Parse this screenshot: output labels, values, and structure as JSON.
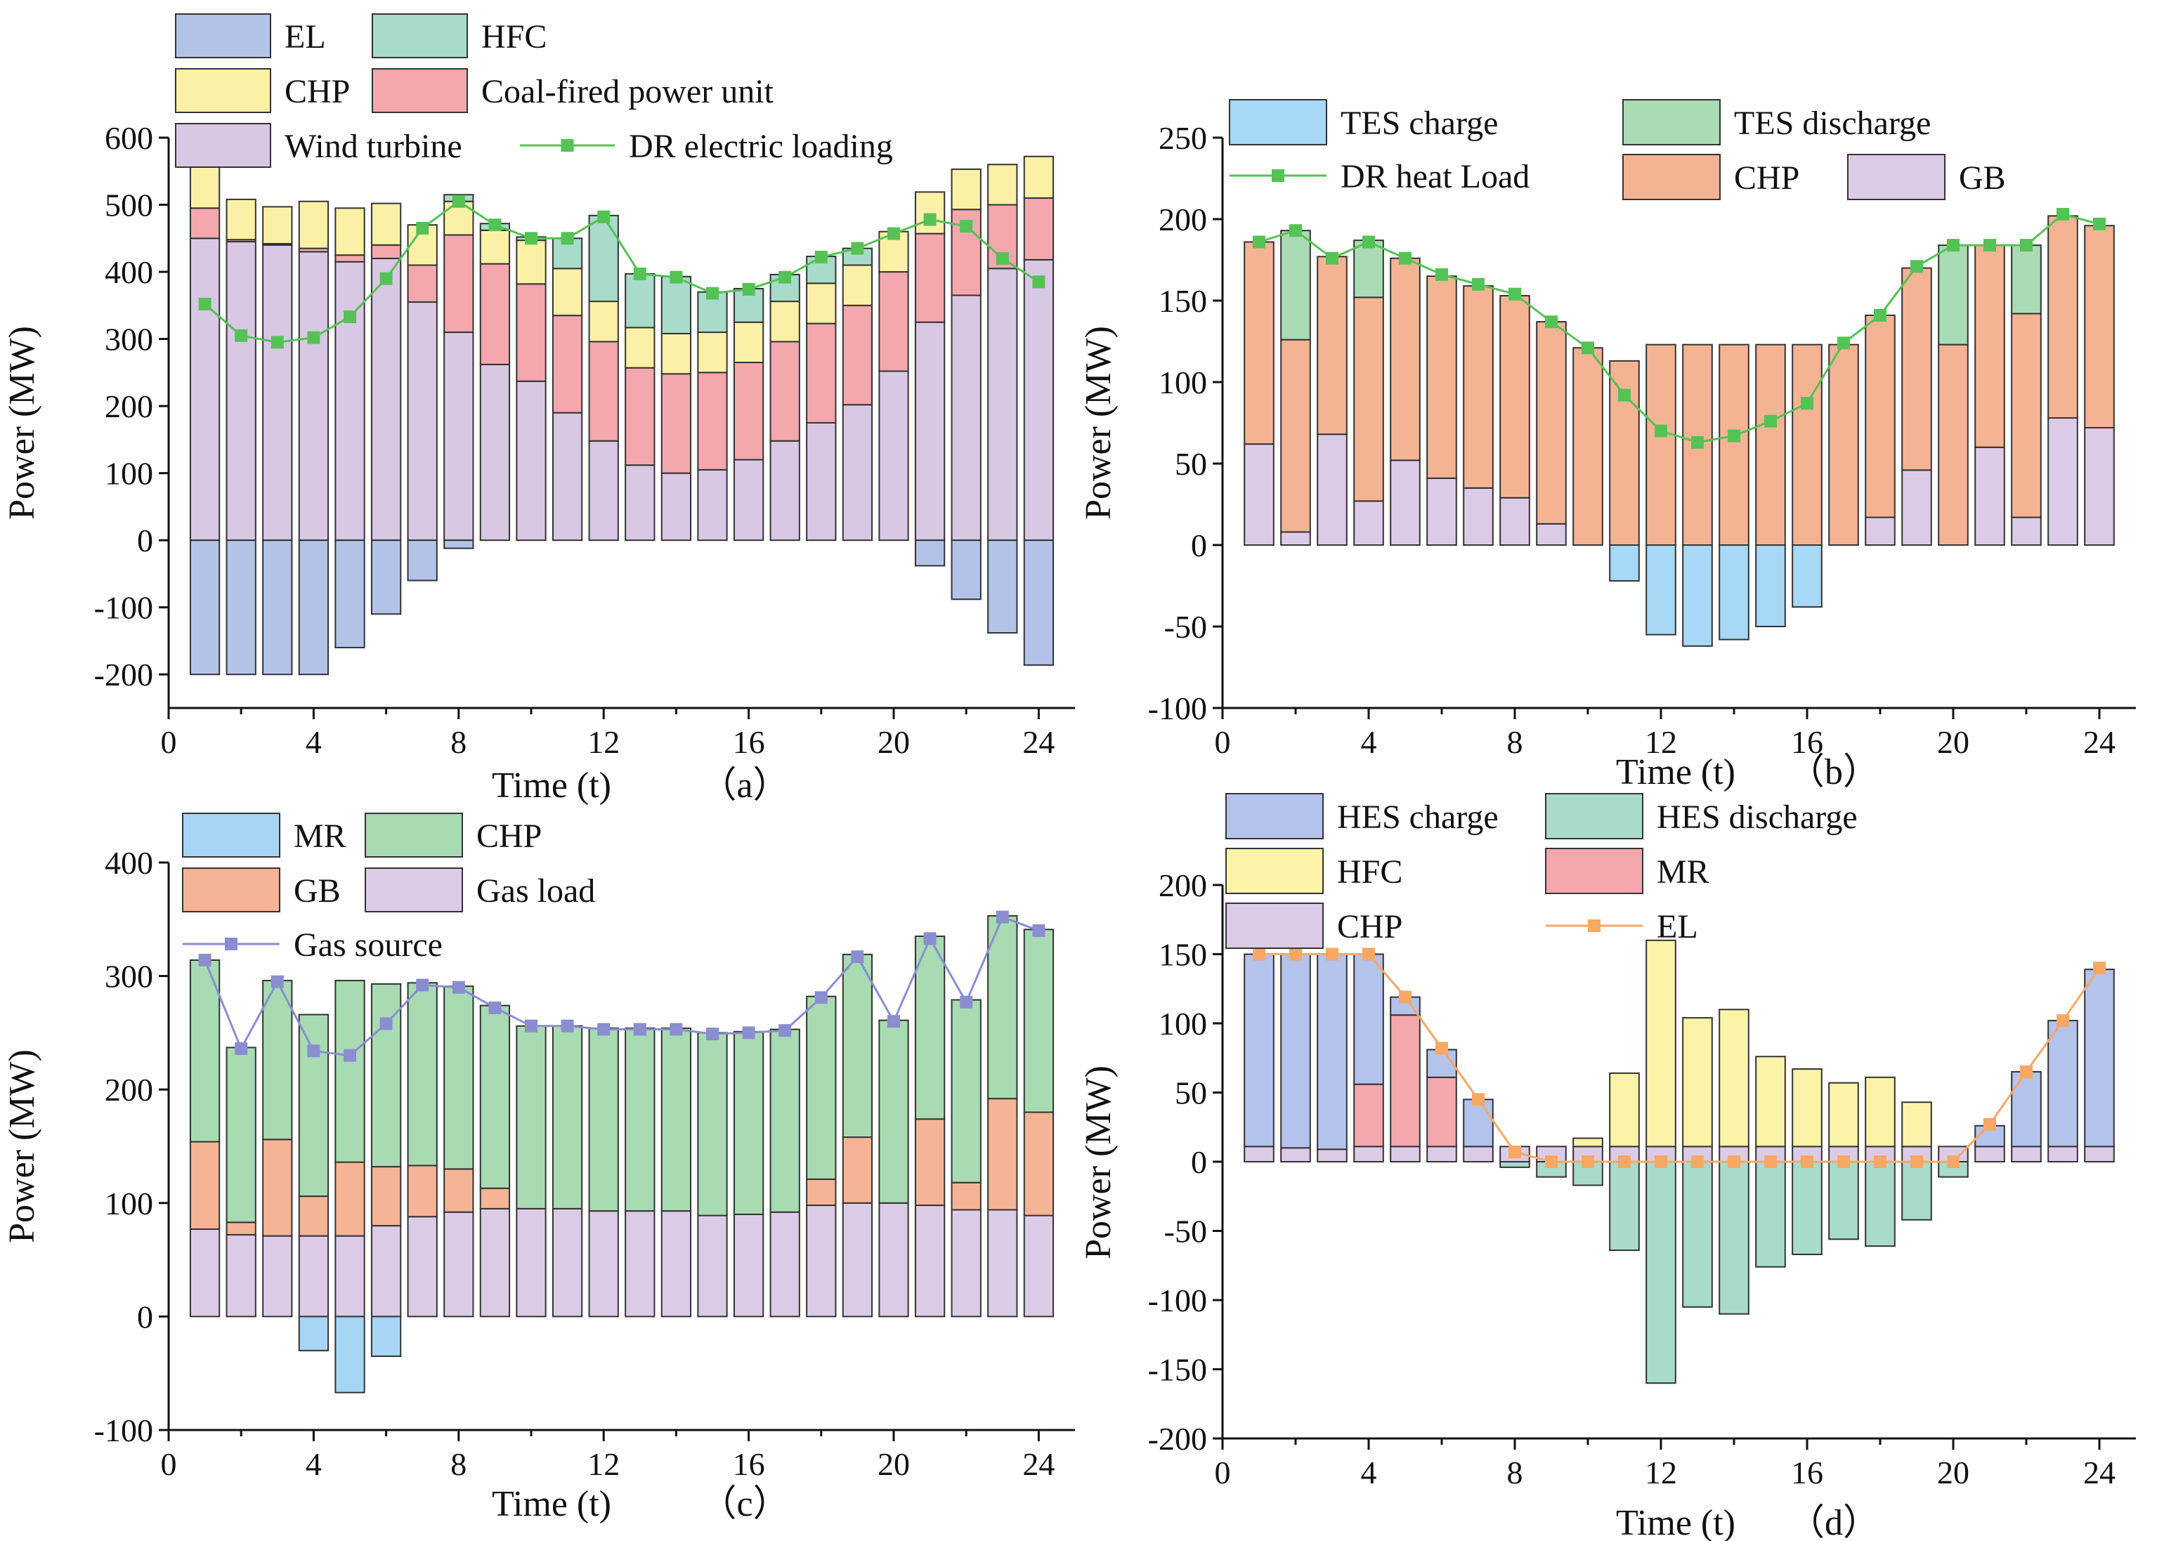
{
  "colors": {
    "EL": "#b3c3e8",
    "HFC": "#a8dbc9",
    "CHP_elec": "#fbf1a6",
    "Coal": "#f4a7ad",
    "Wind": "#d8c8e4",
    "DR_elec_line": "#55c255",
    "TES_charge": "#a7d8f5",
    "TES_discharge": "#a9dbb5",
    "CHP_heat": "#f4b493",
    "GB_heat": "#dccbe6",
    "DR_heat_line": "#55c255",
    "MR_gas": "#a7d6f5",
    "CHP_gas": "#a8dbb2",
    "GB_gas": "#f4b495",
    "Gas_load": "#dccbe6",
    "Gas_source_line": "#8a8ed0",
    "HES_charge": "#b3c3ec",
    "HES_discharge": "#a9dbcb",
    "HFC_h2": "#fbf3a8",
    "MR_h2": "#f4a7ad",
    "CHP_h2": "#dccbe6",
    "EL_h2_line": "#f7a865"
  },
  "chart_data": [
    {
      "panel": "a",
      "type": "bar",
      "stacked": true,
      "xlabel": "Time (t)",
      "panel_tag": "（a）",
      "ylabel": "Power (MW)",
      "xlim": [
        0,
        25
      ],
      "ylim": [
        -250,
        600
      ],
      "xticks": [
        0,
        4,
        8,
        12,
        16,
        20,
        24
      ],
      "yticks": [
        -200,
        -100,
        0,
        100,
        200,
        300,
        400,
        500,
        600
      ],
      "x": [
        1,
        2,
        3,
        4,
        5,
        6,
        7,
        8,
        9,
        10,
        11,
        12,
        13,
        14,
        15,
        16,
        17,
        18,
        19,
        20,
        21,
        22,
        23,
        24
      ],
      "series": [
        {
          "name": "Wind turbine",
          "color_key": "Wind",
          "values": [
            450,
            445,
            440,
            430,
            415,
            420,
            355,
            310,
            262,
            237,
            190,
            148,
            112,
            100,
            105,
            120,
            148,
            175,
            202,
            252,
            325,
            365,
            405,
            418
          ]
        },
        {
          "name": "Coal-fired power unit",
          "color_key": "Coal",
          "values": [
            45,
            3,
            2,
            5,
            10,
            20,
            55,
            145,
            150,
            145,
            145,
            148,
            145,
            148,
            145,
            145,
            148,
            148,
            148,
            148,
            132,
            128,
            95,
            92
          ]
        },
        {
          "name": "CHP",
          "color_key": "CHP_elec",
          "values": [
            105,
            60,
            55,
            70,
            70,
            62,
            60,
            50,
            50,
            65,
            70,
            60,
            60,
            60,
            60,
            60,
            60,
            60,
            60,
            60,
            62,
            60,
            60,
            62
          ]
        },
        {
          "name": "HFC",
          "color_key": "HFC",
          "values": [
            0,
            0,
            0,
            0,
            0,
            0,
            0,
            10,
            10,
            5,
            45,
            128,
            80,
            85,
            60,
            50,
            40,
            40,
            25,
            0,
            0,
            0,
            0,
            0
          ]
        },
        {
          "name": "EL",
          "color_key": "EL",
          "values": [
            -200,
            -200,
            -200,
            -200,
            -160,
            -110,
            -60,
            -12,
            0,
            0,
            0,
            0,
            0,
            0,
            0,
            0,
            0,
            0,
            0,
            0,
            -38,
            -88,
            -138,
            -186
          ]
        }
      ],
      "lines": [
        {
          "name": "DR electric loading",
          "color_key": "DR_elec_line",
          "values": [
            352,
            305,
            295,
            302,
            333,
            390,
            465,
            505,
            470,
            450,
            450,
            482,
            397,
            392,
            368,
            374,
            392,
            422,
            435,
            457,
            478,
            468,
            420,
            385
          ]
        }
      ],
      "legend": [
        {
          "name": "EL",
          "kind": "box",
          "color_key": "EL"
        },
        {
          "name": "HFC",
          "kind": "box",
          "color_key": "HFC"
        },
        {
          "name": "CHP",
          "kind": "box",
          "color_key": "CHP_elec"
        },
        {
          "name": "Coal-fired power unit",
          "kind": "box",
          "color_key": "Coal"
        },
        {
          "name": "Wind turbine",
          "kind": "box",
          "color_key": "Wind"
        },
        {
          "name": "DR electric loading",
          "kind": "line",
          "color_key": "DR_elec_line"
        }
      ]
    },
    {
      "panel": "b",
      "type": "bar",
      "stacked": true,
      "xlabel": "Time (t)",
      "panel_tag": "（b）",
      "ylabel": "Power (MW)",
      "xlim": [
        0,
        25
      ],
      "ylim": [
        -100,
        250
      ],
      "xticks": [
        0,
        4,
        8,
        12,
        16,
        20,
        24
      ],
      "yticks": [
        -100,
        -50,
        0,
        50,
        100,
        150,
        200,
        250
      ],
      "x": [
        1,
        2,
        3,
        4,
        5,
        6,
        7,
        8,
        9,
        10,
        11,
        12,
        13,
        14,
        15,
        16,
        17,
        18,
        19,
        20,
        21,
        22,
        23,
        24
      ],
      "series": [
        {
          "name": "GB",
          "color_key": "GB_heat",
          "values": [
            62,
            8,
            68,
            27,
            52,
            41,
            35,
            29,
            13,
            0,
            0,
            0,
            0,
            0,
            0,
            0,
            0,
            17,
            46,
            0,
            60,
            17,
            78,
            72
          ]
        },
        {
          "name": "CHP",
          "color_key": "CHP_heat",
          "values": [
            124,
            118,
            109,
            125,
            124,
            124,
            124,
            124,
            124,
            121,
            113,
            123,
            123,
            123,
            123,
            123,
            123,
            124,
            124,
            123,
            124,
            125,
            124,
            124
          ]
        },
        {
          "name": "TES discharge",
          "color_key": "TES_discharge",
          "values": [
            0,
            67,
            0,
            35,
            0,
            0,
            0,
            0,
            0,
            0,
            0,
            0,
            0,
            0,
            0,
            0,
            0,
            0,
            0,
            61,
            0,
            42,
            0,
            0
          ]
        },
        {
          "name": "TES charge",
          "color_key": "TES_charge",
          "values": [
            0,
            0,
            0,
            0,
            0,
            0,
            0,
            0,
            0,
            0,
            -22,
            -55,
            -62,
            -58,
            -50,
            -38,
            0,
            0,
            0,
            0,
            0,
            0,
            0,
            0
          ]
        }
      ],
      "lines": [
        {
          "name": "DR heat Load",
          "color_key": "DR_heat_line",
          "values": [
            186,
            193,
            176,
            186,
            176,
            166,
            160,
            154,
            137,
            121,
            92,
            70,
            63,
            67,
            76,
            87,
            124,
            141,
            171,
            184,
            184,
            184,
            203,
            197
          ]
        }
      ],
      "legend": [
        {
          "name": "TES charge",
          "kind": "box",
          "color_key": "TES_charge"
        },
        {
          "name": "TES discharge",
          "kind": "box",
          "color_key": "TES_discharge"
        },
        {
          "name": "DR heat Load",
          "kind": "line",
          "color_key": "DR_heat_line"
        },
        {
          "name": "CHP",
          "kind": "box",
          "color_key": "CHP_heat"
        },
        {
          "name": "GB",
          "kind": "box",
          "color_key": "GB_heat"
        }
      ]
    },
    {
      "panel": "c",
      "type": "bar",
      "stacked": true,
      "xlabel": "Time (t)",
      "panel_tag": "（c）",
      "ylabel": "Power (MW)",
      "xlim": [
        0,
        25
      ],
      "ylim": [
        -100,
        400
      ],
      "xticks": [
        0,
        4,
        8,
        12,
        16,
        20,
        24
      ],
      "yticks": [
        -100,
        0,
        100,
        200,
        300,
        400
      ],
      "x": [
        1,
        2,
        3,
        4,
        5,
        6,
        7,
        8,
        9,
        10,
        11,
        12,
        13,
        14,
        15,
        16,
        17,
        18,
        19,
        20,
        21,
        22,
        23,
        24
      ],
      "series": [
        {
          "name": "Gas load",
          "color_key": "Gas_load",
          "values": [
            77,
            72,
            71,
            71,
            71,
            80,
            88,
            92,
            95,
            95,
            95,
            93,
            93,
            93,
            89,
            90,
            92,
            98,
            100,
            100,
            98,
            94,
            94,
            89
          ]
        },
        {
          "name": "GB",
          "color_key": "GB_gas",
          "values": [
            77,
            11,
            85,
            35,
            65,
            52,
            45,
            38,
            18,
            0,
            0,
            0,
            0,
            0,
            0,
            0,
            0,
            23,
            58,
            0,
            76,
            24,
            98,
            91
          ]
        },
        {
          "name": "CHP",
          "color_key": "CHP_gas",
          "values": [
            160,
            154,
            140,
            160,
            160,
            161,
            161,
            161,
            161,
            161,
            161,
            161,
            161,
            161,
            161,
            161,
            161,
            161,
            161,
            161,
            161,
            161,
            161,
            161
          ]
        },
        {
          "name": "MR",
          "color_key": "MR_gas",
          "values": [
            0,
            0,
            0,
            -30,
            -67,
            -35,
            0,
            0,
            0,
            0,
            0,
            0,
            0,
            0,
            0,
            0,
            0,
            0,
            0,
            0,
            0,
            0,
            0,
            0
          ]
        }
      ],
      "lines": [
        {
          "name": "Gas source",
          "color_key": "Gas_source_line",
          "values": [
            314,
            236,
            295,
            234,
            230,
            258,
            292,
            290,
            272,
            256,
            256,
            253,
            253,
            253,
            249,
            250,
            252,
            281,
            317,
            260,
            333,
            277,
            352,
            340
          ]
        }
      ],
      "legend": [
        {
          "name": "MR",
          "kind": "box",
          "color_key": "MR_gas"
        },
        {
          "name": "CHP",
          "kind": "box",
          "color_key": "CHP_gas"
        },
        {
          "name": "GB",
          "kind": "box",
          "color_key": "GB_gas"
        },
        {
          "name": "Gas load",
          "kind": "box",
          "color_key": "Gas_load"
        },
        {
          "name": "Gas source",
          "kind": "line",
          "color_key": "Gas_source_line"
        }
      ]
    },
    {
      "panel": "d",
      "type": "bar",
      "stacked": true,
      "xlabel": "Time (t)",
      "panel_tag": "（d）",
      "ylabel": "Power (MW)",
      "xlim": [
        0,
        25
      ],
      "ylim": [
        -200,
        200
      ],
      "xticks": [
        0,
        4,
        8,
        12,
        16,
        20,
        24
      ],
      "yticks": [
        -200,
        -150,
        -100,
        -50,
        0,
        50,
        100,
        150,
        200
      ],
      "x": [
        1,
        2,
        3,
        4,
        5,
        6,
        7,
        8,
        9,
        10,
        11,
        12,
        13,
        14,
        15,
        16,
        17,
        18,
        19,
        20,
        21,
        22,
        23,
        24
      ],
      "series": [
        {
          "name": "CHP",
          "color_key": "CHP_h2",
          "values": [
            11,
            10,
            9,
            11,
            11,
            11,
            11,
            11,
            11,
            11,
            11,
            11,
            11,
            11,
            11,
            11,
            11,
            11,
            11,
            11,
            11,
            11,
            11,
            11
          ]
        },
        {
          "name": "MR",
          "color_key": "MR_h2",
          "values": [
            0,
            0,
            0,
            45,
            95,
            50,
            0,
            0,
            0,
            0,
            0,
            0,
            0,
            0,
            0,
            0,
            0,
            0,
            0,
            0,
            0,
            0,
            0,
            0
          ]
        },
        {
          "name": "HFC",
          "color_key": "HFC_h2",
          "values": [
            0,
            0,
            0,
            0,
            0,
            0,
            0,
            0,
            0,
            6,
            53,
            149,
            93,
            99,
            65,
            56,
            46,
            50,
            32,
            0,
            0,
            0,
            0,
            0
          ]
        },
        {
          "name": "HES charge",
          "color_key": "HES_charge",
          "values": [
            139,
            140,
            141,
            94,
            13,
            20,
            34,
            0,
            0,
            0,
            0,
            0,
            0,
            0,
            0,
            0,
            0,
            0,
            0,
            0,
            15,
            54,
            91,
            128
          ]
        },
        {
          "name": "HES discharge",
          "color_key": "HES_discharge",
          "values": [
            0,
            0,
            0,
            0,
            0,
            0,
            0,
            -4,
            -11,
            -17,
            -64,
            -160,
            -105,
            -110,
            -76,
            -67,
            -56,
            -61,
            -42,
            -11,
            0,
            0,
            0,
            0
          ]
        }
      ],
      "lines": [
        {
          "name": "EL",
          "color_key": "EL_h2_line",
          "values": [
            150,
            150,
            150,
            150,
            119,
            82,
            45,
            7,
            0,
            0,
            0,
            0,
            0,
            0,
            0,
            0,
            0,
            0,
            0,
            0,
            27,
            65,
            102,
            140
          ]
        }
      ],
      "legend": [
        {
          "name": "HES charge",
          "kind": "box",
          "color_key": "HES_charge"
        },
        {
          "name": "HES discharge",
          "kind": "box",
          "color_key": "HES_discharge"
        },
        {
          "name": "HFC",
          "kind": "box",
          "color_key": "HFC_h2"
        },
        {
          "name": "MR",
          "kind": "box",
          "color_key": "MR_h2"
        },
        {
          "name": "CHP",
          "kind": "box",
          "color_key": "CHP_h2"
        },
        {
          "name": "EL",
          "kind": "line",
          "color_key": "EL_h2_line"
        }
      ]
    }
  ]
}
